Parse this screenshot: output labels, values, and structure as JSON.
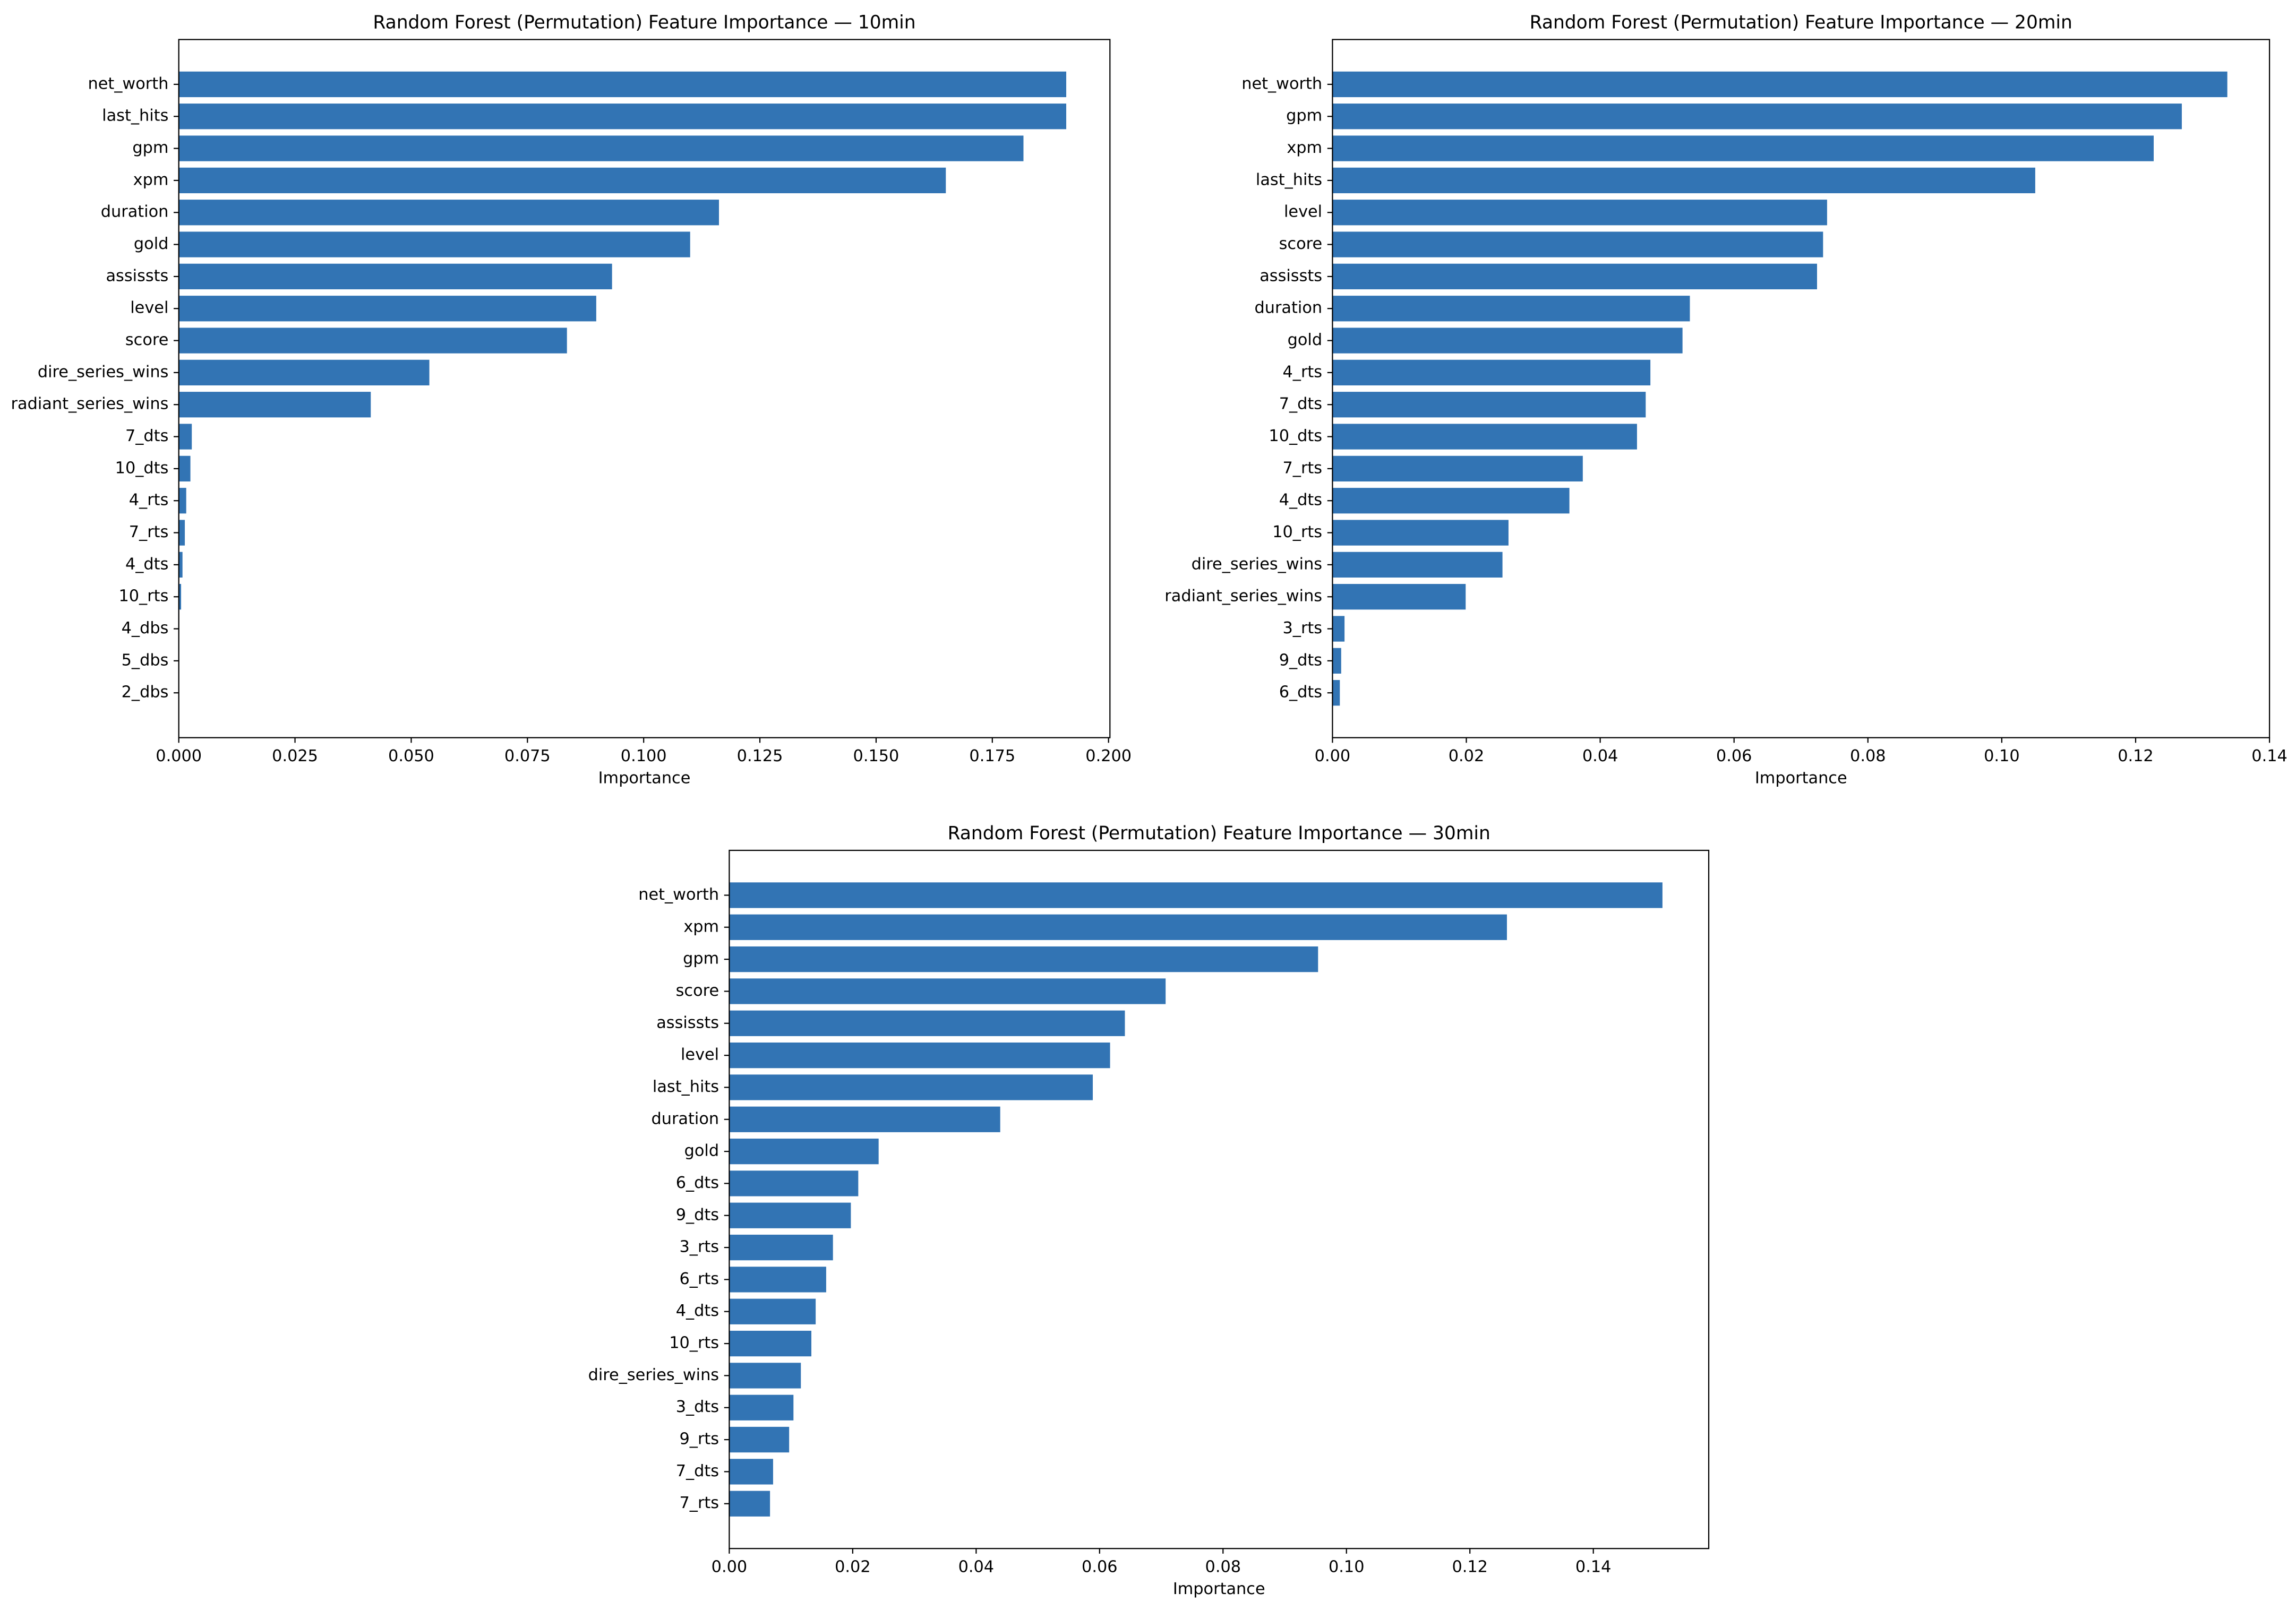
{
  "chart_data": [
    {
      "type": "barh",
      "title": "Random Forest (Permutation) Feature Importance — 10min",
      "xlabel": "Importance",
      "color": "#3274b4",
      "categories": [
        "net_worth",
        "last_hits",
        "gpm",
        "xpm",
        "duration",
        "gold",
        "assissts",
        "level",
        "score",
        "dire_series_wins",
        "radiant_series_wins",
        "7_dts",
        "10_dts",
        "4_rts",
        "7_rts",
        "4_dts",
        "10_rts",
        "4_dbs",
        "5_dbs",
        "2_dbs"
      ],
      "values": [
        0.1909,
        0.1909,
        0.1817,
        0.165,
        0.1162,
        0.11,
        0.0932,
        0.0898,
        0.0835,
        0.0539,
        0.0413,
        0.0028,
        0.0025,
        0.0016,
        0.0013,
        0.0008,
        0.0005,
        0,
        0,
        0
      ],
      "xlim": [
        0,
        0.2003
      ],
      "xticks": [
        {
          "value": 0,
          "label": "0.000"
        },
        {
          "value": 0.025,
          "label": "0.025"
        },
        {
          "value": 0.05,
          "label": "0.050"
        },
        {
          "value": 0.075,
          "label": "0.075"
        },
        {
          "value": 0.1,
          "label": "0.100"
        },
        {
          "value": 0.125,
          "label": "0.125"
        },
        {
          "value": 0.15,
          "label": "0.150"
        },
        {
          "value": 0.175,
          "label": "0.175"
        },
        {
          "value": 0.2,
          "label": "0.200"
        }
      ]
    },
    {
      "type": "barh",
      "title": "Random Forest (Permutation) Feature Importance — 20min",
      "xlabel": "Importance",
      "color": "#3274b4",
      "categories": [
        "net_worth",
        "gpm",
        "xpm",
        "last_hits",
        "level",
        "score",
        "assissts",
        "duration",
        "gold",
        "4_rts",
        "7_dts",
        "10_dts",
        "7_rts",
        "4_dts",
        "10_rts",
        "dire_series_wins",
        "radiant_series_wins",
        "3_rts",
        "9_dts",
        "6_dts"
      ],
      "values": [
        0.1337,
        0.1269,
        0.1227,
        0.105,
        0.0739,
        0.0733,
        0.0724,
        0.0534,
        0.0523,
        0.0475,
        0.0468,
        0.0455,
        0.0374,
        0.0354,
        0.0263,
        0.0254,
        0.0199,
        0.0018,
        0.0013,
        0.0011
      ],
      "xlim": [
        0,
        0.14
      ],
      "xticks": [
        {
          "value": 0,
          "label": "0.00"
        },
        {
          "value": 0.02,
          "label": "0.02"
        },
        {
          "value": 0.04,
          "label": "0.04"
        },
        {
          "value": 0.06,
          "label": "0.06"
        },
        {
          "value": 0.08,
          "label": "0.08"
        },
        {
          "value": 0.1,
          "label": "0.10"
        },
        {
          "value": 0.12,
          "label": "0.12"
        },
        {
          "value": 0.14,
          "label": "0.14"
        }
      ]
    },
    {
      "type": "barh",
      "title": "Random Forest (Permutation) Feature Importance — 30min",
      "xlabel": "Importance",
      "color": "#3274b4",
      "categories": [
        "net_worth",
        "xpm",
        "gpm",
        "score",
        "assissts",
        "level",
        "last_hits",
        "duration",
        "gold",
        "6_dts",
        "9_dts",
        "3_rts",
        "6_rts",
        "4_dts",
        "10_rts",
        "dire_series_wins",
        "3_dts",
        "9_rts",
        "7_dts",
        "7_rts"
      ],
      "values": [
        0.1512,
        0.126,
        0.0954,
        0.0707,
        0.0641,
        0.0617,
        0.0589,
        0.0439,
        0.0242,
        0.0209,
        0.0197,
        0.0168,
        0.0157,
        0.014,
        0.0133,
        0.0116,
        0.0104,
        0.0097,
        0.0071,
        0.0066
      ],
      "xlim": [
        0,
        0.1587
      ],
      "xticks": [
        {
          "value": 0,
          "label": "0.00"
        },
        {
          "value": 0.02,
          "label": "0.02"
        },
        {
          "value": 0.04,
          "label": "0.04"
        },
        {
          "value": 0.06,
          "label": "0.06"
        },
        {
          "value": 0.08,
          "label": "0.08"
        },
        {
          "value": 0.1,
          "label": "0.10"
        },
        {
          "value": 0.12,
          "label": "0.12"
        },
        {
          "value": 0.14,
          "label": "0.14"
        }
      ]
    }
  ]
}
